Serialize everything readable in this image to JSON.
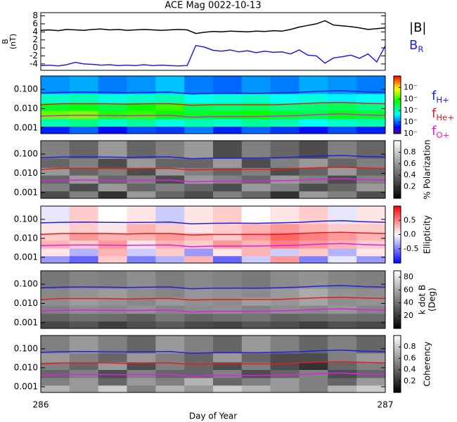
{
  "chart_data": [
    {
      "type": "line",
      "title": "ACE Mag 0022-10-13",
      "ylabel": [
        "B",
        "(nT)"
      ],
      "xlim": [
        286,
        287
      ],
      "ylim": [
        -5.6,
        8.8
      ],
      "yticks": [
        -4,
        -2,
        0,
        2,
        4,
        6,
        8
      ],
      "x": [
        286,
        286.025,
        286.05,
        286.075,
        286.1,
        286.125,
        286.15,
        286.175,
        286.2,
        286.225,
        286.25,
        286.275,
        286.3,
        286.325,
        286.35,
        286.375,
        286.4,
        286.425,
        286.45,
        286.475,
        286.5,
        286.525,
        286.55,
        286.575,
        286.6,
        286.625,
        286.65,
        286.675,
        286.7,
        286.725,
        286.75,
        286.775,
        286.8,
        286.825,
        286.85,
        286.875,
        286.9,
        286.925,
        286.95,
        286.975,
        287
      ],
      "series": [
        {
          "name": "|B|",
          "color": "#000000",
          "values": [
            4.4,
            4.5,
            4.3,
            4.6,
            4.5,
            4.4,
            4.6,
            4.7,
            4.5,
            4.6,
            4.4,
            4.5,
            4.6,
            4.5,
            4.4,
            4.5,
            4.6,
            4.5,
            3.6,
            3.9,
            4.1,
            4.0,
            4.2,
            4.1,
            4.0,
            4.2,
            4.1,
            4.3,
            4.2,
            4.6,
            5.2,
            5.6,
            6.0,
            6.8,
            5.7,
            5.5,
            5.3,
            5.0,
            4.6,
            4.8,
            5.0
          ]
        },
        {
          "name": "B",
          "name_sub": "R",
          "color": "#2020e0",
          "values": [
            -4.4,
            -4.3,
            -4.5,
            -4.2,
            -3.6,
            -4.0,
            -4.1,
            -4.3,
            -4.2,
            -4.4,
            -4.3,
            -4.4,
            -4.2,
            -4.4,
            -4.3,
            -4.4,
            -4.5,
            -4.4,
            0.6,
            0.2,
            -0.6,
            -0.8,
            -0.5,
            -1.0,
            -0.7,
            -1.2,
            -0.8,
            -1.1,
            -1.0,
            -1.5,
            -0.5,
            -1.8,
            -2.0,
            -3.8,
            -2.5,
            -2.2,
            -1.8,
            -2.6,
            -1.5,
            -3.5,
            0.5
          ]
        }
      ]
    },
    {
      "type": "heatmap",
      "log_y": true,
      "ylim": [
        0.0005,
        0.5
      ],
      "yticks": [
        {
          "value": 0.1,
          "label": "0.100"
        },
        {
          "value": 0.01,
          "label": "0.010"
        },
        {
          "value": 0.001,
          "label": "0.001"
        }
      ],
      "x_edges": [
        286,
        286.0833,
        286.1667,
        286.25,
        286.3333,
        286.4167,
        286.5,
        286.5833,
        286.6667,
        286.75,
        286.8333,
        286.9167,
        287
      ],
      "y_edges": [
        0.0005,
        0.0012,
        0.003,
        0.008,
        0.02,
        0.06,
        0.5
      ],
      "colormap": "rainbow",
      "zlim": [
        -5,
        0
      ],
      "zticks": [
        {
          "value": -1,
          "label": "10⁻"
        },
        {
          "value": -2,
          "label": "10⁻"
        },
        {
          "value": -3,
          "label": "10⁻"
        },
        {
          "value": -4,
          "label": "10⁻"
        },
        {
          "value": -5,
          "label": "10⁻"
        }
      ],
      "z": [
        [
          -4.3,
          -4.0,
          -4.4,
          -4.1,
          -4.2,
          -3.9,
          -4.3,
          -4.0,
          -4.2,
          -4.4,
          -4.1,
          -4.3
        ],
        [
          -3.0,
          -2.8,
          -3.1,
          -2.9,
          -3.2,
          -3.0,
          -3.1,
          -2.9,
          -3.0,
          -3.3,
          -3.1,
          -3.0
        ],
        [
          -1.8,
          -1.7,
          -2.1,
          -2.0,
          -2.2,
          -2.4,
          -2.3,
          -2.2,
          -2.4,
          -2.5,
          -2.3,
          -2.4
        ],
        [
          -2.4,
          -2.3,
          -2.5,
          -2.2,
          -2.0,
          -2.6,
          -2.7,
          -2.6,
          -2.8,
          -2.7,
          -2.6,
          -2.8
        ],
        [
          -3.1,
          -3.0,
          -3.2,
          -3.1,
          -3.0,
          -3.3,
          -3.2,
          -3.1,
          -3.3,
          -3.2,
          -3.4,
          -3.3
        ],
        [
          -3.8,
          -3.7,
          -3.9,
          -3.8,
          -3.6,
          -3.9,
          -4.0,
          -3.8,
          -3.9,
          -3.7,
          -3.8,
          -3.9
        ]
      ],
      "x": [
        286,
        286.0625,
        286.125,
        286.1875,
        286.25,
        286.3125,
        286.375,
        286.4375,
        286.5,
        286.5625,
        286.625,
        286.6875,
        286.75,
        286.8125,
        286.875,
        286.9375,
        287
      ],
      "series": [
        {
          "name": "f",
          "name_sub": "H+",
          "color": "#2020e0",
          "values": [
            0.065,
            0.07,
            0.072,
            0.07,
            0.068,
            0.07,
            0.072,
            0.058,
            0.062,
            0.063,
            0.062,
            0.065,
            0.07,
            0.08,
            0.085,
            0.075,
            0.07
          ]
        },
        {
          "name": "f",
          "name_sub": "He+",
          "color": "#e02020",
          "values": [
            0.016,
            0.018,
            0.018,
            0.018,
            0.017,
            0.018,
            0.018,
            0.015,
            0.016,
            0.016,
            0.016,
            0.016,
            0.018,
            0.02,
            0.021,
            0.019,
            0.018
          ]
        },
        {
          "name": "f",
          "name_sub": "O+",
          "color": "#e020e0",
          "values": [
            0.0041,
            0.0044,
            0.0045,
            0.0044,
            0.0043,
            0.0044,
            0.0045,
            0.0036,
            0.0039,
            0.0039,
            0.0039,
            0.0041,
            0.0044,
            0.005,
            0.0053,
            0.0047,
            0.0044
          ]
        }
      ]
    },
    {
      "type": "heatmap",
      "log_y": true,
      "ylim": [
        0.0005,
        0.5
      ],
      "yticks": [
        {
          "value": 0.1,
          "label": "0.100"
        },
        {
          "value": 0.01,
          "label": "0.010"
        },
        {
          "value": 0.001,
          "label": "0.001"
        }
      ],
      "colormap": "gray",
      "zlim": [
        0,
        1
      ],
      "zticks": [
        0.2,
        0.4,
        0.6,
        0.8
      ],
      "colorbar_label": [
        "% Polarization"
      ],
      "z": [
        [
          0.3,
          0.5,
          0.2,
          0.6,
          0.4,
          0.3,
          0.5,
          0.4,
          0.2,
          0.6,
          0.5,
          0.3
        ],
        [
          0.5,
          0.3,
          0.6,
          0.4,
          0.5,
          0.4,
          0.3,
          0.6,
          0.5,
          0.3,
          0.4,
          0.6
        ],
        [
          0.4,
          0.6,
          0.4,
          0.5,
          0.3,
          0.6,
          0.5,
          0.4,
          0.6,
          0.5,
          0.3,
          0.5
        ],
        [
          0.6,
          0.4,
          0.5,
          0.3,
          0.6,
          0.5,
          0.4,
          0.5,
          0.3,
          0.4,
          0.6,
          0.4
        ],
        [
          0.4,
          0.5,
          0.3,
          0.6,
          0.4,
          0.4,
          0.6,
          0.3,
          0.5,
          0.6,
          0.4,
          0.5
        ],
        [
          0.5,
          0.4,
          0.6,
          0.4,
          0.5,
          0.6,
          0.3,
          0.5,
          0.4,
          0.3,
          0.5,
          0.4
        ]
      ]
    },
    {
      "type": "heatmap",
      "log_y": true,
      "ylim": [
        0.0005,
        0.5
      ],
      "yticks": [
        {
          "value": 0.1,
          "label": "0.100"
        },
        {
          "value": 0.01,
          "label": "0.010"
        },
        {
          "value": 0.001,
          "label": "0.001"
        }
      ],
      "colormap": "bwr",
      "zlim": [
        -1,
        1
      ],
      "zticks": [
        -0.5,
        {
          "value": 0,
          "label": "0.0"
        },
        0.5
      ],
      "colorbar_label": [
        "Ellipticity"
      ],
      "z": [
        [
          -0.4,
          -0.6,
          0.2,
          -0.5,
          -0.3,
          0.3,
          -0.6,
          -0.2,
          0.4,
          -0.5,
          -0.1,
          -0.4
        ],
        [
          0.1,
          -0.3,
          0.3,
          -0.2,
          0.2,
          -0.4,
          0.1,
          0.3,
          -0.2,
          0.2,
          -0.3,
          0.1
        ],
        [
          0.3,
          0.2,
          0.4,
          0.1,
          0.3,
          0.2,
          0.4,
          0.3,
          0.5,
          0.4,
          0.3,
          0.2
        ],
        [
          0.2,
          0.4,
          0.3,
          0.3,
          0.4,
          0.3,
          0.2,
          0.4,
          0.6,
          0.5,
          0.4,
          0.3
        ],
        [
          0.1,
          0.2,
          0.1,
          0.3,
          0.2,
          0.1,
          0.2,
          0.3,
          0.4,
          0.3,
          0.2,
          0.2
        ],
        [
          -0.1,
          0.2,
          0,
          0.1,
          -0.2,
          0.1,
          0.2,
          0,
          0.1,
          0.2,
          -0.1,
          0.1
        ]
      ]
    },
    {
      "type": "heatmap",
      "log_y": true,
      "ylim": [
        0.0005,
        0.5
      ],
      "yticks": [
        {
          "value": 0.1,
          "label": "0.100"
        },
        {
          "value": 0.01,
          "label": "0.010"
        },
        {
          "value": 0.001,
          "label": "0.001"
        }
      ],
      "colormap": "gray",
      "zlim": [
        0,
        90
      ],
      "zticks": [
        20,
        40,
        60,
        80
      ],
      "colorbar_label": [
        "k dot B",
        "(Deg)"
      ],
      "z": [
        [
          25,
          30,
          22,
          28,
          32,
          26,
          24,
          30,
          27,
          23,
          29,
          26
        ],
        [
          35,
          40,
          38,
          33,
          42,
          36,
          39,
          41,
          35,
          37,
          40,
          38
        ],
        [
          45,
          50,
          48,
          52,
          47,
          49,
          51,
          46,
          50,
          48,
          53,
          47
        ],
        [
          50,
          55,
          52,
          48,
          54,
          51,
          49,
          56,
          53,
          58,
          50,
          52
        ],
        [
          48,
          52,
          55,
          50,
          47,
          53,
          51,
          49,
          54,
          60,
          52,
          50
        ],
        [
          42,
          47,
          45,
          50,
          44,
          48,
          46,
          43,
          49,
          52,
          47,
          45
        ]
      ]
    },
    {
      "type": "heatmap",
      "log_y": true,
      "ylim": [
        0.0005,
        0.5
      ],
      "yticks": [
        {
          "value": 0.1,
          "label": "0.100"
        },
        {
          "value": 0.01,
          "label": "0.010"
        },
        {
          "value": 0.001,
          "label": "0.001"
        }
      ],
      "colormap": "gray",
      "zlim": [
        0,
        1
      ],
      "zticks": [
        0.2,
        0.4,
        0.6,
        0.8
      ],
      "colorbar_label": [
        "Coherency"
      ],
      "xlim": [
        286,
        287
      ],
      "xticks": [
        286,
        287
      ],
      "xlabel": "Day of Year",
      "z": [
        [
          0.7,
          0.6,
          0.8,
          0.5,
          0.7,
          0.6,
          0.8,
          0.7,
          0.6,
          0.5,
          0.7,
          0.8
        ],
        [
          0.5,
          0.6,
          0.4,
          0.6,
          0.5,
          0.7,
          0.4,
          0.5,
          0.6,
          0.5,
          0.4,
          0.6
        ],
        [
          0.4,
          0.5,
          0.3,
          0.5,
          0.4,
          0.4,
          0.5,
          0.3,
          0.4,
          0.5,
          0.3,
          0.4
        ],
        [
          0.5,
          0.4,
          0.6,
          0.3,
          0.5,
          0.4,
          0.3,
          0.5,
          0.3,
          0.2,
          0.4,
          0.5
        ],
        [
          0.6,
          0.5,
          0.4,
          0.6,
          0.5,
          0.4,
          0.6,
          0.4,
          0.3,
          0.3,
          0.5,
          0.6
        ],
        [
          0.5,
          0.6,
          0.5,
          0.4,
          0.6,
          0.5,
          0.4,
          0.6,
          0.5,
          0.4,
          0.5,
          0.4
        ]
      ]
    }
  ]
}
